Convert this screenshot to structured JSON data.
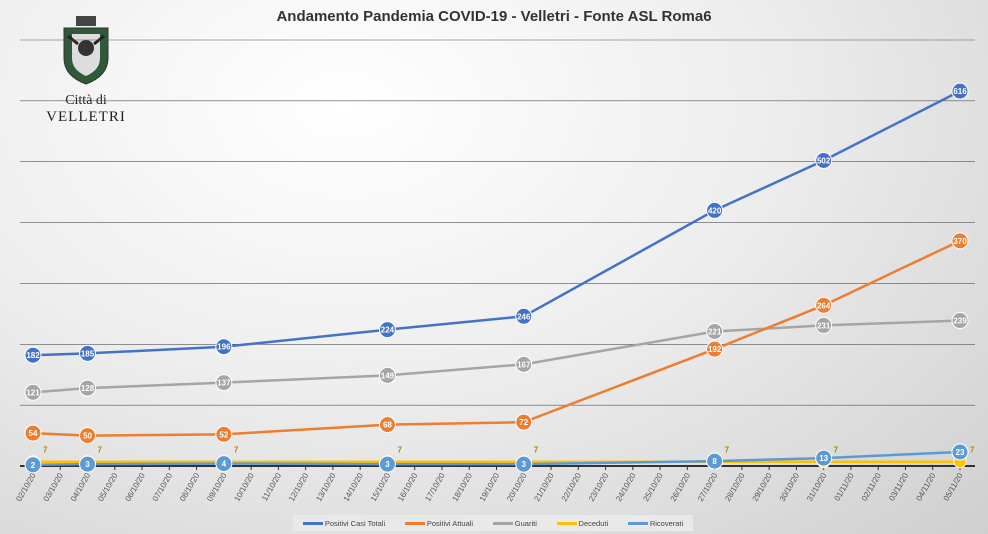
{
  "chart_data": {
    "type": "line",
    "title": "Andamento Pandemia COVID-19 - Velletri - Fonte ASL Roma6",
    "x_ticks": [
      "02/10/20",
      "03/10/20",
      "04/10/20",
      "05/10/20",
      "06/10/20",
      "07/10/20",
      "08/10/20",
      "09/10/20",
      "10/10/20",
      "11/10/20",
      "12/10/20",
      "13/10/20",
      "14/10/20",
      "15/10/20",
      "16/10/20",
      "17/10/20",
      "18/10/20",
      "19/10/20",
      "20/10/20",
      "21/10/20",
      "22/10/20",
      "23/10/20",
      "24/10/20",
      "25/10/20",
      "26/10/20",
      "27/10/20",
      "28/10/20",
      "29/10/20",
      "30/10/20",
      "31/10/20",
      "01/11/20",
      "02/11/20",
      "03/11/20",
      "04/11/20",
      "05/11/20"
    ],
    "x": [
      "02/10/20",
      "04/10/20",
      "09/10/20",
      "15/10/20",
      "20/10/20",
      "27/10/20",
      "31/10/20",
      "05/11/20"
    ],
    "ylim": [
      0,
      700
    ],
    "grid": true,
    "legend": "bottom",
    "series": [
      {
        "name": "Positivi Casi Totali",
        "color": "#4472c4",
        "values": [
          182,
          185,
          196,
          224,
          246,
          420,
          502,
          616
        ]
      },
      {
        "name": "Positivi Attuali",
        "color": "#ed7d31",
        "values": [
          54,
          50,
          52,
          68,
          72,
          192,
          264,
          370
        ]
      },
      {
        "name": "Guariti",
        "color": "#a5a5a5",
        "values": [
          121,
          128,
          137,
          149,
          167,
          221,
          231,
          239
        ]
      },
      {
        "name": "Deceduti",
        "color": "#ffc000",
        "values": [
          7,
          7,
          7,
          7,
          7,
          7,
          7,
          7
        ]
      },
      {
        "name": "Ricoverati",
        "color": "#5b9bd5",
        "values": [
          2,
          3,
          4,
          3,
          3,
          8,
          13,
          23
        ]
      }
    ]
  },
  "logo": {
    "line1": "Città di",
    "line2": "VELLETRI"
  }
}
